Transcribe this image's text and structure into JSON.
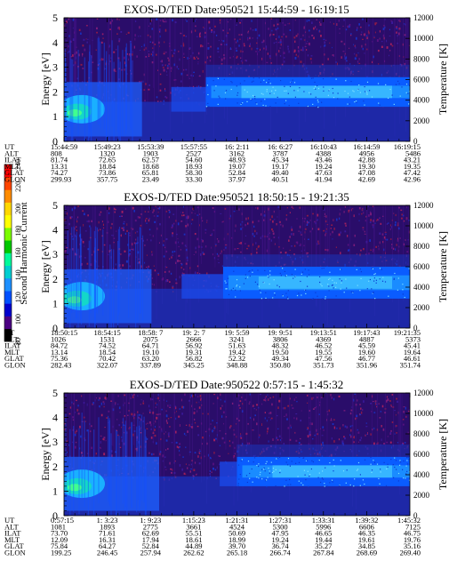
{
  "colorbar": {
    "label": "Second Harmonic Current",
    "ticks": [
      "80",
      "100",
      "120",
      "140",
      "160",
      "180",
      "200",
      "220",
      "240"
    ],
    "colors": [
      "#000000",
      "#4b0082",
      "#0000cd",
      "#0050ff",
      "#1e90ff",
      "#00ced1",
      "#00fa9a",
      "#00c800",
      "#7cfc00",
      "#ffff00",
      "#ffd700",
      "#ff8c00",
      "#ff4500",
      "#ff0000"
    ],
    "range": [
      80,
      240
    ]
  },
  "chart_data": [
    {
      "type": "heatmap",
      "title": "EXOS-D/TED   Date:950521   15:44:59 - 16:19:15",
      "ylabel": "Energy [eV]",
      "y2label": "Temperature [K]",
      "ylim": [
        0,
        5
      ],
      "y_ticks": [
        "0",
        "1",
        "2",
        "3",
        "4",
        "5"
      ],
      "y2lim": [
        0,
        12000
      ],
      "y2_ticks": [
        "0",
        "2000",
        "4000",
        "6000",
        "8000",
        "10000",
        "12000"
      ],
      "x_rows": [
        {
          "label": "UT",
          "values": [
            "15:44:59",
            "15:49:23",
            "15:53:39",
            "15:57:55",
            "16: 2:11",
            "16: 6:27",
            "16:10:43",
            "16:14:59",
            "16:19:15"
          ]
        },
        {
          "label": "ALT",
          "values": [
            "808",
            "1320",
            "1903",
            "2527",
            "3162",
            "3787",
            "4388",
            "4956",
            "5486"
          ]
        },
        {
          "label": "ILAT",
          "values": [
            "81.74",
            "72.65",
            "62.57",
            "54.60",
            "48.93",
            "45.34",
            "43.46",
            "42.88",
            "43.21"
          ]
        },
        {
          "label": "MLT",
          "values": [
            "13.31",
            "18.84",
            "18.68",
            "18.93",
            "19.07",
            "19.17",
            "19.24",
            "19.30",
            "19.35"
          ]
        },
        {
          "label": "GLAT",
          "values": [
            "74.27",
            "73.86",
            "65.81",
            "58.30",
            "52.84",
            "49.40",
            "47.63",
            "47.08",
            "47.42"
          ]
        },
        {
          "label": "GLON",
          "values": [
            "299.93",
            "357.75",
            "23.49",
            "33.30",
            "37.97",
            "40.51",
            "41.94",
            "42.69",
            "42.96"
          ]
        }
      ]
    },
    {
      "type": "heatmap",
      "title": "EXOS-D/TED   Date:950521   18:50:15 - 19:21:35",
      "ylabel": "Energy [eV]",
      "y2label": "Temperature [K]",
      "ylim": [
        0,
        5
      ],
      "y_ticks": [
        "0",
        "1",
        "2",
        "3",
        "4",
        "5"
      ],
      "y2lim": [
        0,
        12000
      ],
      "y2_ticks": [
        "0",
        "2000",
        "4000",
        "6000",
        "8000",
        "10000",
        "12000"
      ],
      "x_rows": [
        {
          "label": "UT",
          "values": [
            "18:50:15",
            "18:54:15",
            "18:58: 7",
            "19: 2: 7",
            "19: 5:59",
            "19: 9:51",
            "19:13:51",
            "19:17:43",
            "19:21:35"
          ]
        },
        {
          "label": "ALT",
          "values": [
            "1026",
            "1531",
            "2075",
            "2666",
            "3241",
            "3806",
            "4369",
            "4887",
            "5373"
          ]
        },
        {
          "label": "ILAT",
          "values": [
            "84.72",
            "74.52",
            "64.71",
            "56.92",
            "51.63",
            "48.32",
            "46.52",
            "45.59",
            "45.41"
          ]
        },
        {
          "label": "MLT",
          "values": [
            "13.14",
            "18.54",
            "19.10",
            "19.31",
            "19.42",
            "19.50",
            "19.55",
            "19.60",
            "19.64"
          ]
        },
        {
          "label": "GLAT",
          "values": [
            "75.36",
            "70.42",
            "63.20",
            "56.82",
            "52.32",
            "49.34",
            "47.56",
            "46.77",
            "46.61"
          ]
        },
        {
          "label": "GLON",
          "values": [
            "282.43",
            "322.07",
            "337.89",
            "345.25",
            "348.88",
            "350.80",
            "351.73",
            "351.96",
            "351.74"
          ]
        }
      ]
    },
    {
      "type": "heatmap",
      "title": "EXOS-D/TED   Date:950522   0:57:15 - 1:45:32",
      "ylabel": "Energy [eV]",
      "y2label": "Temperature [K]",
      "ylim": [
        0,
        5
      ],
      "y_ticks": [
        "0",
        "1",
        "2",
        "3",
        "4",
        "5"
      ],
      "y2lim": [
        0,
        12000
      ],
      "y2_ticks": [
        "0",
        "2000",
        "4000",
        "6000",
        "8000",
        "10000",
        "12000"
      ],
      "x_rows": [
        {
          "label": "UT",
          "values": [
            "0:57:15",
            "1: 3:23",
            "1: 9:23",
            "1:15:23",
            "1:21:31",
            "1:27:31",
            "1:33:31",
            "1:39:32",
            "1:45:32"
          ]
        },
        {
          "label": "ALT",
          "values": [
            "1081",
            "1893",
            "2775",
            "3661",
            "4524",
            "5300",
            "5996",
            "6606",
            "7125"
          ]
        },
        {
          "label": "ILAT",
          "values": [
            "73.70",
            "71.61",
            "62.69",
            "55.51",
            "50.69",
            "47.95",
            "46.65",
            "46.35",
            "46.75"
          ]
        },
        {
          "label": "MLT",
          "values": [
            "12.09",
            "16.31",
            "17.94",
            "18.61",
            "18.99",
            "19.24",
            "19.44",
            "19.61",
            "19.76"
          ]
        },
        {
          "label": "GLAT",
          "values": [
            "75.84",
            "64.27",
            "52.84",
            "44.89",
            "39.70",
            "36.74",
            "35.27",
            "34.85",
            "35.16"
          ]
        },
        {
          "label": "GLON",
          "values": [
            "199.25",
            "246.45",
            "257.94",
            "262.62",
            "265.18",
            "266.74",
            "267.84",
            "268.69",
            "269.40"
          ]
        }
      ]
    }
  ]
}
